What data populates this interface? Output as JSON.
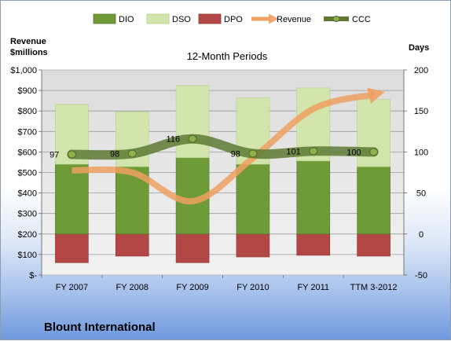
{
  "chart_data": {
    "type": "bar",
    "title": "12-Month Periods",
    "company": "Blount International",
    "left_axis_label": [
      "Revenue",
      "$millions"
    ],
    "right_axis_label": "Days",
    "categories": [
      "FY 2007",
      "FY 2008",
      "FY 2009",
      "FY 2010",
      "FY 2011",
      "TTM 3-2012"
    ],
    "left_ticks": [
      "$-",
      "$100",
      "$200",
      "$300",
      "$400",
      "$500",
      "$600",
      "$700",
      "$800",
      "$900",
      "$1,000"
    ],
    "right_ticks": [
      "-50",
      "0",
      "50",
      "100",
      "150",
      "200"
    ],
    "y_left_range": [
      0,
      1000
    ],
    "y_right_range": [
      -50,
      200
    ],
    "series": [
      {
        "name": "DIO",
        "values": [
          85,
          82,
          93,
          85,
          89,
          82
        ],
        "color": "#6e9a38"
      },
      {
        "name": "DSO",
        "values": [
          73,
          67,
          88,
          81,
          89,
          82
        ],
        "color": "#d2e5ad"
      },
      {
        "name": "DPO",
        "values": [
          -35,
          -27,
          -35,
          -28,
          -26,
          -27
        ],
        "color": "#b24745"
      },
      {
        "name": "Revenue",
        "values": [
          510,
          500,
          360,
          570,
          810,
          880
        ],
        "color": "#f0a060"
      },
      {
        "name": "CCC",
        "values": [
          97,
          98,
          116,
          98,
          101,
          100
        ],
        "color": "#5e7a32"
      }
    ],
    "ccc_labels": [
      "97",
      "98",
      "116",
      "98",
      "101",
      "100"
    ],
    "legend_position": "top",
    "grid": true
  }
}
